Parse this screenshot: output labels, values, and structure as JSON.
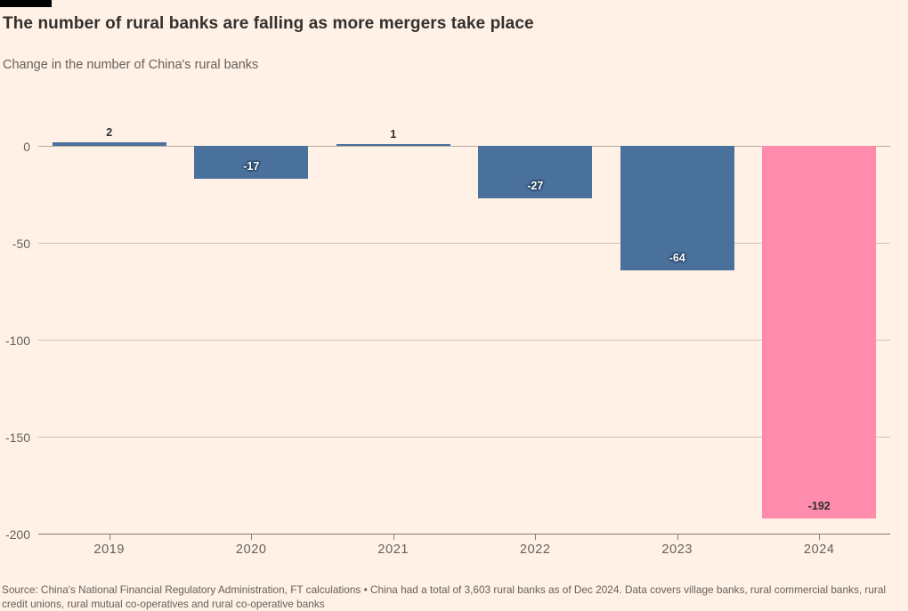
{
  "header": {
    "title": "The number of rural banks are falling as more mergers take place",
    "subtitle": "Change in the number of China's rural banks"
  },
  "chart_data": {
    "type": "bar",
    "title": "The number of rural banks are falling as more mergers take place",
    "subtitle": "Change in the number of China's rural banks",
    "categories": [
      "2019",
      "2020",
      "2021",
      "2022",
      "2023",
      "2024"
    ],
    "values": [
      2,
      -17,
      1,
      -27,
      -64,
      -192
    ],
    "bar_labels": [
      "2",
      "-17",
      "1",
      "-27",
      "-64",
      "-192"
    ],
    "xlabel": "",
    "ylabel": "",
    "ylim": [
      -200,
      5
    ],
    "y_ticks": [
      0,
      -50,
      -100,
      -150,
      -200
    ],
    "y_tick_labels": [
      "0",
      "-50",
      "-100",
      "-150",
      "-200"
    ],
    "grid": "horizontal",
    "legend": "none",
    "colors": {
      "bar_default": "#4A719C",
      "bar_highlight": "#FF8CAC",
      "highlight_category": "2024",
      "background": "#FFF1E5",
      "label_above": "#33302E",
      "label_inside_default": "#FFFFFF",
      "label_inside_highlight": "#2B2E35",
      "gridline": "#CFC3B6",
      "axis": "#857D74",
      "tick_text": "#66605C"
    }
  },
  "footer": {
    "source": "Source: China's National Financial Regulatory Administration, FT calculations • China had a total of 3,603 rural banks as of Dec 2024. Data covers village banks, rural commercial banks, rural credit unions, rural mutual co-operatives and rural co-operative banks"
  }
}
